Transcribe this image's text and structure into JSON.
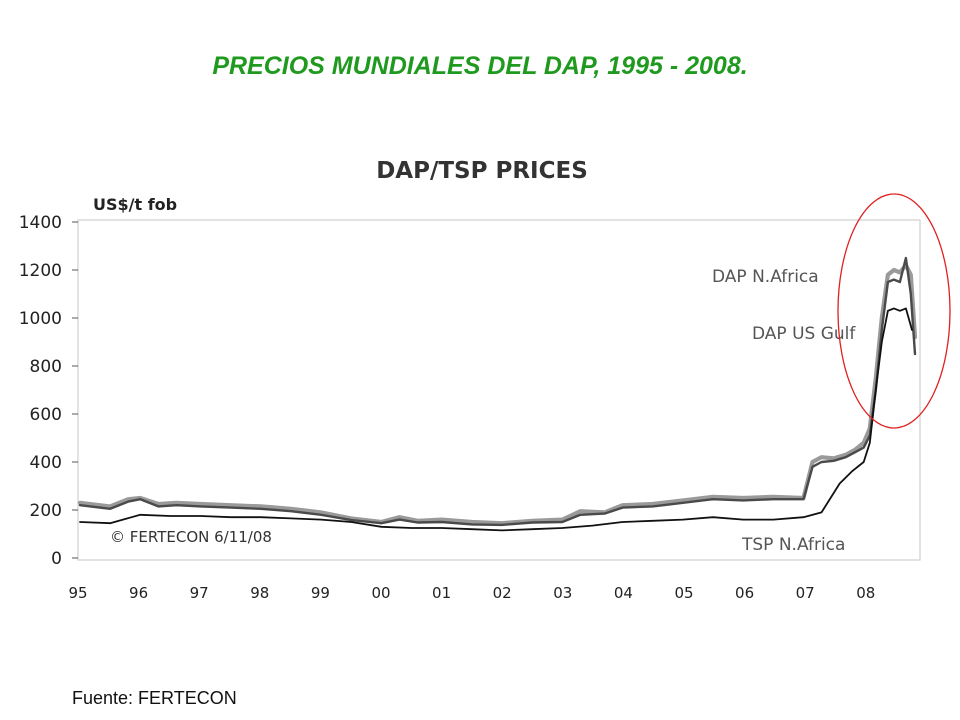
{
  "slide": {
    "title": "PRECIOS MUNDIALES DEL DAP, 1995 - 2008.",
    "source": "Fuente: FERTECON"
  },
  "colors": {
    "title": "#1f9a1f",
    "highlight_circle": "#e02020",
    "line_dap_na": "#9a9a9a",
    "line_dap_us": "#4a4a4a",
    "line_tsp": "#111111"
  },
  "chart_data": {
    "type": "line",
    "title": "DAP/TSP PRICES",
    "ylabel": "US$/t fob",
    "xlabel": "",
    "ylim": [
      0,
      1400
    ],
    "xlim": [
      1995,
      2008.9
    ],
    "y_ticks": [
      "0",
      "200",
      "400",
      "600",
      "800",
      "1000",
      "1200",
      "1400"
    ],
    "x_ticks": [
      "95",
      "96",
      "97",
      "98",
      "99",
      "00",
      "01",
      "02",
      "03",
      "04",
      "05",
      "06",
      "07",
      "08"
    ],
    "annotation": "© FERTECON 6/11/08",
    "legend": "inline labels",
    "grid": false,
    "series": [
      {
        "name": "DAP N.Africa",
        "x": [
          1995.0,
          1995.5,
          1995.8,
          1996.0,
          1996.3,
          1996.6,
          1997.0,
          1997.5,
          1998.0,
          1998.5,
          1999.0,
          1999.5,
          2000.0,
          2000.3,
          2000.6,
          2001.0,
          2001.5,
          2002.0,
          2002.5,
          2003.0,
          2003.3,
          2003.7,
          2004.0,
          2004.5,
          2005.0,
          2005.5,
          2006.0,
          2006.5,
          2007.0,
          2007.15,
          2007.3,
          2007.5,
          2007.7,
          2007.85,
          2008.0,
          2008.1,
          2008.2,
          2008.3,
          2008.4,
          2008.5,
          2008.6,
          2008.7,
          2008.78,
          2008.85
        ],
        "y": [
          230,
          215,
          245,
          250,
          225,
          230,
          225,
          220,
          215,
          205,
          190,
          165,
          150,
          170,
          155,
          160,
          150,
          145,
          155,
          160,
          195,
          190,
          220,
          225,
          240,
          255,
          250,
          255,
          250,
          400,
          420,
          415,
          430,
          450,
          480,
          540,
          750,
          1000,
          1180,
          1200,
          1190,
          1220,
          1180,
          920
        ]
      },
      {
        "name": "DAP US Gulf",
        "x": [
          1995.0,
          1995.5,
          1995.8,
          1996.0,
          1996.3,
          1996.6,
          1997.0,
          1997.5,
          1998.0,
          1998.5,
          1999.0,
          1999.5,
          2000.0,
          2000.3,
          2000.6,
          2001.0,
          2001.5,
          2002.0,
          2002.5,
          2003.0,
          2003.3,
          2003.7,
          2004.0,
          2004.5,
          2005.0,
          2005.5,
          2006.0,
          2006.5,
          2007.0,
          2007.15,
          2007.3,
          2007.5,
          2007.7,
          2007.85,
          2008.0,
          2008.1,
          2008.2,
          2008.3,
          2008.4,
          2008.5,
          2008.6,
          2008.7,
          2008.78,
          2008.85
        ],
        "y": [
          220,
          205,
          235,
          245,
          215,
          220,
          215,
          210,
          205,
          195,
          180,
          158,
          145,
          160,
          148,
          150,
          140,
          138,
          148,
          150,
          180,
          185,
          210,
          215,
          230,
          245,
          240,
          245,
          245,
          380,
          400,
          405,
          420,
          440,
          460,
          510,
          700,
          950,
          1150,
          1160,
          1150,
          1250,
          1100,
          850
        ]
      },
      {
        "name": "TSP N.Africa",
        "x": [
          1995.0,
          1995.5,
          1996.0,
          1996.5,
          1997.0,
          1997.5,
          1998.0,
          1998.5,
          1999.0,
          1999.5,
          2000.0,
          2000.5,
          2001.0,
          2001.5,
          2002.0,
          2002.5,
          2003.0,
          2003.5,
          2004.0,
          2004.5,
          2005.0,
          2005.5,
          2006.0,
          2006.5,
          2007.0,
          2007.3,
          2007.6,
          2007.8,
          2008.0,
          2008.1,
          2008.2,
          2008.3,
          2008.4,
          2008.5,
          2008.6,
          2008.7,
          2008.8
        ],
        "y": [
          150,
          145,
          180,
          175,
          175,
          170,
          170,
          165,
          160,
          150,
          130,
          125,
          125,
          120,
          115,
          120,
          125,
          135,
          150,
          155,
          160,
          170,
          160,
          160,
          170,
          190,
          310,
          360,
          400,
          480,
          700,
          900,
          1030,
          1040,
          1030,
          1040,
          950
        ]
      }
    ]
  }
}
